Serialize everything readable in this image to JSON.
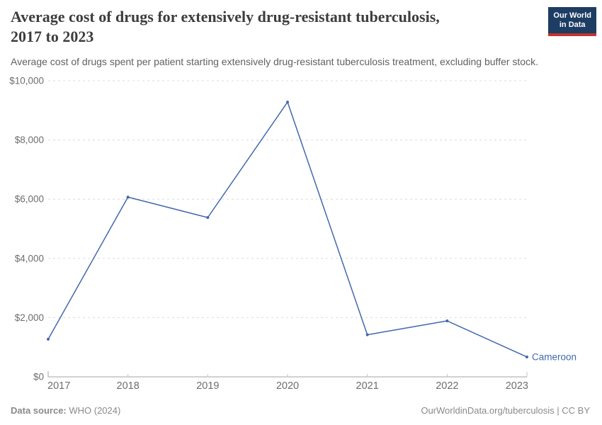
{
  "header": {
    "title_line1": "Average cost of drugs for extensively drug-resistant tuberculosis,",
    "title_line2": "2017 to 2023",
    "subtitle": "Average cost of drugs spent per patient starting extensively drug-resistant tuberculosis treatment, excluding buffer stock.",
    "logo": {
      "line1": "Our World",
      "line2": "in Data",
      "bg_color": "#1d3d63",
      "accent_color": "#c0352d"
    }
  },
  "chart_data": {
    "type": "line",
    "title": "Average cost of drugs for extensively drug-resistant tuberculosis, 2017 to 2023",
    "subtitle": "Average cost of drugs spent per patient starting extensively drug-resistant tuberculosis treatment, excluding buffer stock.",
    "x": [
      "2017",
      "2018",
      "2019",
      "2020",
      "2021",
      "2022",
      "2023"
    ],
    "series": [
      {
        "name": "Cameroon",
        "color": "#4468ac",
        "values": [
          1270,
          6070,
          5380,
          9280,
          1420,
          1890,
          670
        ]
      }
    ],
    "unit": "US$",
    "ylim": [
      0,
      10000
    ],
    "yticks": [
      {
        "value": 0,
        "label": "$0"
      },
      {
        "value": 2000,
        "label": "$2,000"
      },
      {
        "value": 4000,
        "label": "$4,000"
      },
      {
        "value": 6000,
        "label": "$6,000"
      },
      {
        "value": 8000,
        "label": "$8,000"
      },
      {
        "value": 10000,
        "label": "$10,000"
      }
    ],
    "grid": "horizontal dashed",
    "legend": "entity label at line end"
  },
  "footer": {
    "datasource_label": "Data source:",
    "datasource_value": " WHO (2024)",
    "attribution": "OurWorldinData.org/tuberculosis | CC BY"
  }
}
